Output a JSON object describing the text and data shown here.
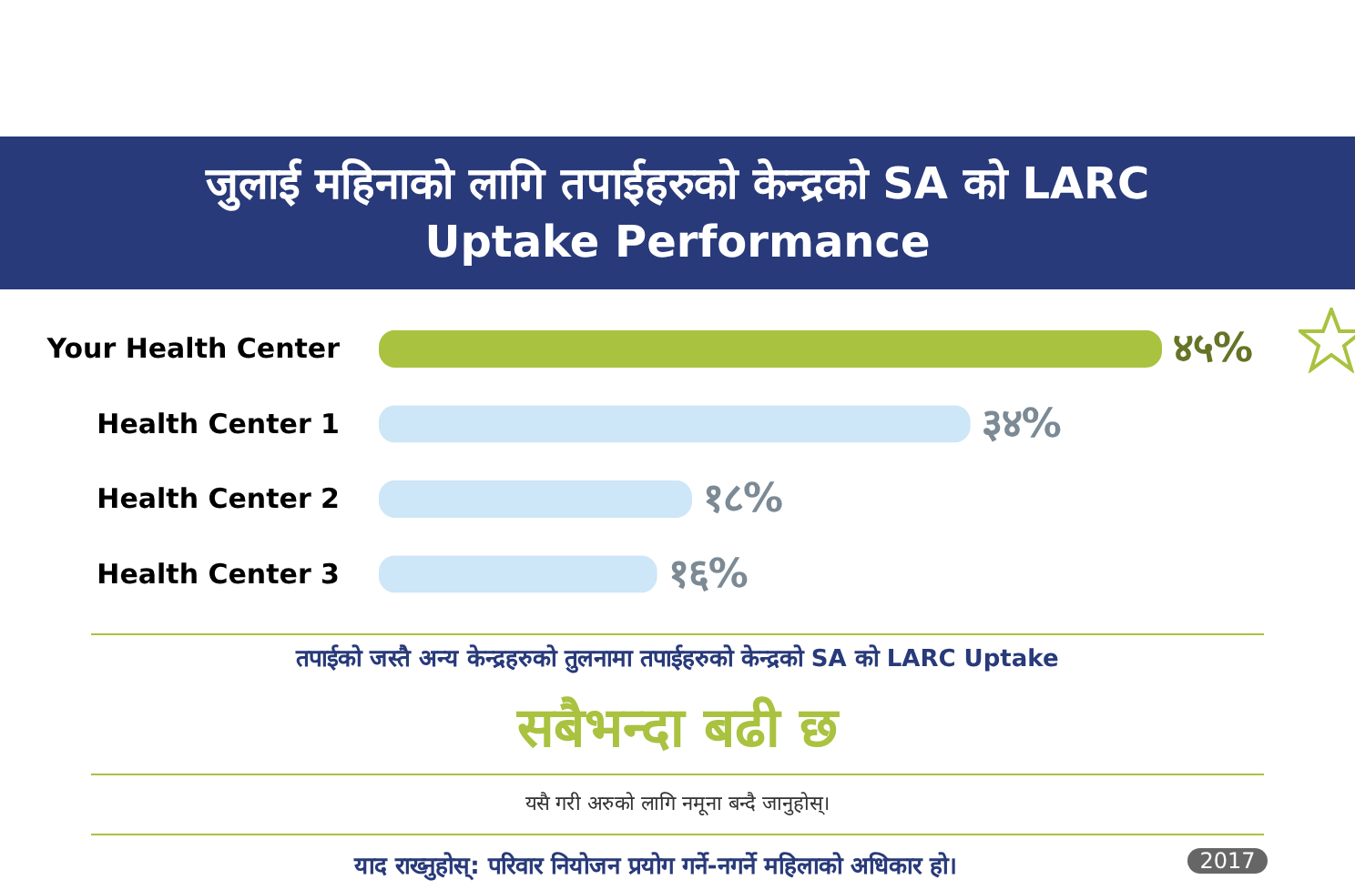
{
  "chart_data": {
    "type": "bar",
    "orientation": "horizontal",
    "title": "जुलाई महिनाको लागि तपाईहरुको केन्द्रको SA को LARC Uptake Performance",
    "categories": [
      "Your Health Center",
      "Health Center 1",
      "Health Center 2",
      "Health Center 3"
    ],
    "values": [
      45,
      34,
      18,
      16
    ],
    "colors": [
      "#a9c23f",
      "#cde6f8",
      "#cde6f8",
      "#cde6f8"
    ],
    "value_labels": [
      "४५%",
      "३४%",
      "१८%",
      "१६%"
    ],
    "tick_labels": "y",
    "grid": false,
    "annotations": [
      "तपाईको जस्तै अन्य केन्द्रहरुको तुलनामा तपाईहरुको केन्द्रको SA को LARC Uptake",
      "सबैभन्दा बढी छ",
      "यसै गरी अरुको लागि नमूना बन्दै जानुहोस्।",
      "याद राख्नुहोस्: परिवार नियोजन प्रयोग गर्ने-नगर्ने महिलाको अधिकार हो।",
      "2017"
    ]
  }
}
